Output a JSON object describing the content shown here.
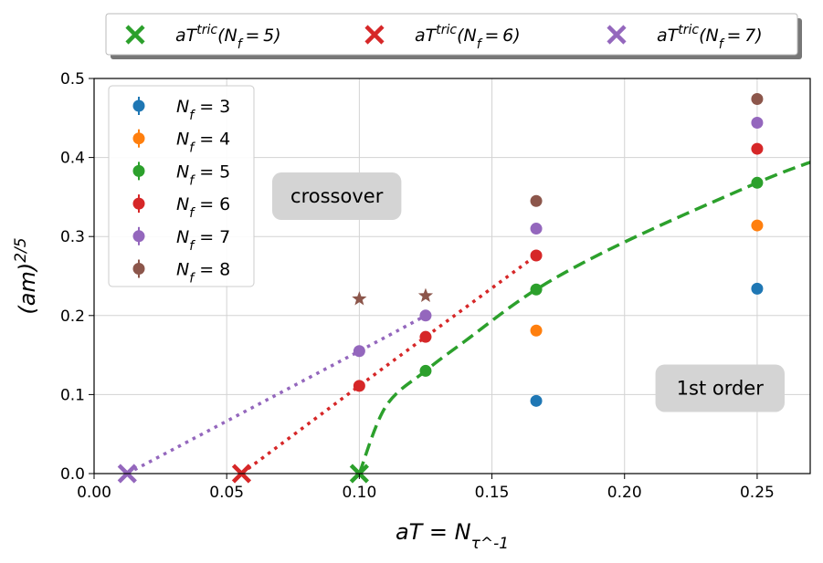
{
  "chart_data": {
    "type": "scatter",
    "xlabel": "aT = N_τ^-1",
    "ylabel": "(am)^2/5",
    "xlim": [
      0.0,
      0.27
    ],
    "ylim": [
      0.0,
      0.5
    ],
    "x_ticks": [
      "0.00",
      "0.05",
      "0.10",
      "0.15",
      "0.20",
      "0.25"
    ],
    "x_tick_values": [
      0.0,
      0.05,
      0.1,
      0.15,
      0.2,
      0.25
    ],
    "y_ticks": [
      "0.0",
      "0.1",
      "0.2",
      "0.3",
      "0.4",
      "0.5"
    ],
    "y_tick_values": [
      0.0,
      0.1,
      0.2,
      0.3,
      0.4,
      0.5
    ],
    "grid": true,
    "legend_placement": "upper-left",
    "top_legend_placement": "above plot",
    "series": [
      {
        "name": "N_f = 3",
        "color": "#1f77b4",
        "points": [
          [
            0.1667,
            0.092
          ],
          [
            0.25,
            0.234
          ]
        ],
        "stars": []
      },
      {
        "name": "N_f = 4",
        "color": "#ff7f0e",
        "points": [
          [
            0.1667,
            0.181
          ],
          [
            0.25,
            0.314
          ]
        ],
        "stars": []
      },
      {
        "name": "N_f = 5",
        "color": "#2ca02c",
        "points": [
          [
            0.125,
            0.13
          ],
          [
            0.1667,
            0.233
          ],
          [
            0.25,
            0.368
          ]
        ],
        "stars": []
      },
      {
        "name": "N_f = 6",
        "color": "#d62728",
        "points": [
          [
            0.1,
            0.111
          ],
          [
            0.125,
            0.173
          ],
          [
            0.1667,
            0.276
          ],
          [
            0.25,
            0.411
          ]
        ],
        "stars": []
      },
      {
        "name": "N_f = 7",
        "color": "#9467bd",
        "points": [
          [
            0.1,
            0.155
          ],
          [
            0.125,
            0.2
          ],
          [
            0.1667,
            0.31
          ],
          [
            0.25,
            0.444
          ]
        ],
        "stars": []
      },
      {
        "name": "N_f = 8",
        "color": "#8c564b",
        "points": [
          [
            0.1667,
            0.345
          ],
          [
            0.25,
            0.474
          ]
        ],
        "stars": [
          [
            0.1,
            0.221
          ],
          [
            0.125,
            0.225
          ]
        ]
      }
    ],
    "tricritical": [
      {
        "name": "aT^tric(N_f = 5)",
        "color": "#2ca02c",
        "x": 0.1,
        "y": 0.0
      },
      {
        "name": "aT^tric(N_f = 6)",
        "color": "#d62728",
        "x": 0.0556,
        "y": 0.0
      },
      {
        "name": "aT^tric(N_f = 7)",
        "color": "#9467bd",
        "x": 0.0125,
        "y": 0.0
      }
    ],
    "fit_lines": [
      {
        "name": "N_f = 5 fit",
        "color": "#2ca02c",
        "style": "dashed",
        "points": [
          [
            0.1,
            0.0
          ],
          [
            0.11,
            0.085
          ],
          [
            0.125,
            0.13
          ],
          [
            0.14,
            0.168
          ],
          [
            0.1667,
            0.233
          ],
          [
            0.2,
            0.293
          ],
          [
            0.25,
            0.368
          ],
          [
            0.27,
            0.394
          ]
        ]
      },
      {
        "name": "N_f = 6 fit",
        "color": "#d62728",
        "style": "dotted",
        "points": [
          [
            0.0556,
            0.0
          ],
          [
            0.1,
            0.111
          ],
          [
            0.125,
            0.173
          ],
          [
            0.1667,
            0.276
          ]
        ]
      },
      {
        "name": "N_f = 7 fit",
        "color": "#9467bd",
        "style": "dotted",
        "points": [
          [
            0.0125,
            0.0
          ],
          [
            0.1,
            0.155
          ],
          [
            0.125,
            0.2
          ]
        ]
      }
    ],
    "annotations": [
      {
        "text": "crossover",
        "x": 0.0915,
        "y": 0.351
      },
      {
        "text": "1st order",
        "x": 0.236,
        "y": 0.108
      }
    ]
  }
}
